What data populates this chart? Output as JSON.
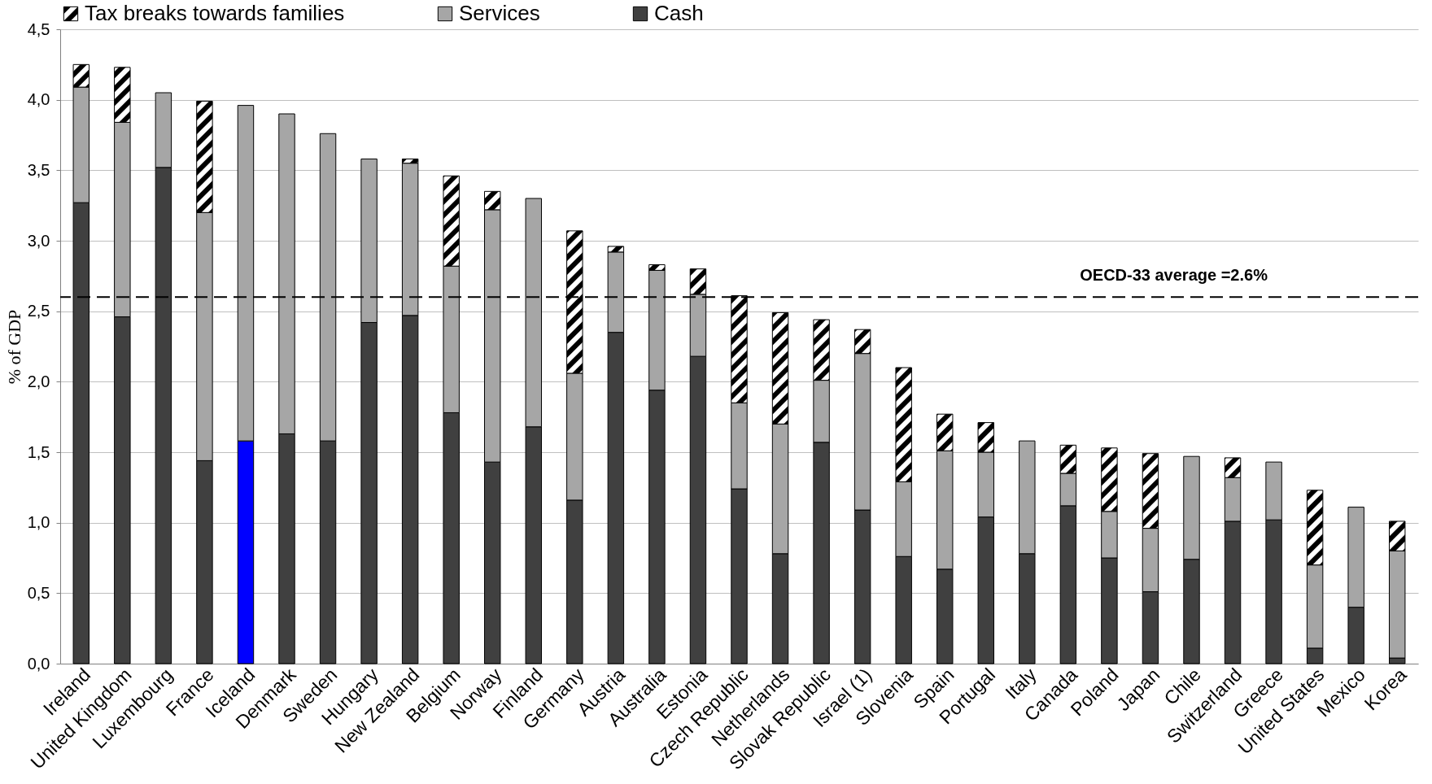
{
  "chart_data": {
    "type": "bar",
    "stacked": true,
    "ylabel": "% of GDP",
    "categories": [
      "Ireland",
      "United Kingdom",
      "Luxembourg",
      "France",
      "Iceland",
      "Denmark",
      "Sweden",
      "Hungary",
      "New Zealand",
      "Belgium",
      "Norway",
      "Finland",
      "Germany",
      "Austria",
      "Australia",
      "Estonia",
      "Czech Republic",
      "Netherlands",
      "Slovak Republic",
      "Israel (1)",
      "Slovenia",
      "Spain",
      "Portugal",
      "Italy",
      "Canada",
      "Poland",
      "Japan",
      "Chile",
      "Switzerland",
      "Greece",
      "United States",
      "Mexico",
      "Korea"
    ],
    "series": [
      {
        "name": "Cash",
        "color": "#404040",
        "colors": [
          "#404040",
          "#404040",
          "#404040",
          "#404040",
          "#0000ff",
          "#404040",
          "#404040",
          "#404040",
          "#404040",
          "#404040",
          "#404040",
          "#404040",
          "#404040",
          "#404040",
          "#404040",
          "#404040",
          "#404040",
          "#404040",
          "#404040",
          "#404040",
          "#404040",
          "#404040",
          "#404040",
          "#404040",
          "#404040",
          "#404040",
          "#404040",
          "#404040",
          "#404040",
          "#404040",
          "#404040",
          "#404040",
          "#404040"
        ],
        "values": [
          3.27,
          2.46,
          3.52,
          1.44,
          1.58,
          1.63,
          1.58,
          2.42,
          2.47,
          1.78,
          1.43,
          1.68,
          1.16,
          2.35,
          1.94,
          2.18,
          1.24,
          0.78,
          1.57,
          1.09,
          0.76,
          0.67,
          1.04,
          0.78,
          1.12,
          0.75,
          0.51,
          0.74,
          1.01,
          1.02,
          0.11,
          0.4,
          0.04
        ]
      },
      {
        "name": "Services",
        "color": "#a6a6a6",
        "values": [
          0.82,
          1.38,
          0.53,
          1.76,
          2.38,
          2.27,
          2.18,
          1.16,
          1.08,
          1.04,
          1.79,
          1.62,
          0.9,
          0.57,
          0.85,
          0.44,
          0.61,
          0.92,
          0.44,
          1.11,
          0.53,
          0.84,
          0.46,
          0.8,
          0.23,
          0.33,
          0.45,
          0.73,
          0.31,
          0.41,
          0.59,
          0.71,
          0.76
        ]
      },
      {
        "name": "Tax breaks towards families",
        "color": "#000000",
        "values": [
          0.16,
          0.39,
          null,
          0.79,
          null,
          null,
          null,
          null,
          0.03,
          0.64,
          0.13,
          null,
          1.01,
          0.04,
          0.04,
          0.18,
          0.76,
          0.79,
          0.43,
          0.17,
          0.81,
          0.26,
          0.21,
          null,
          0.2,
          0.45,
          0.53,
          null,
          0.14,
          null,
          0.53,
          null,
          0.21
        ]
      }
    ],
    "ylim": [
      0,
      4.5
    ],
    "yticks": [
      {
        "value": 0,
        "label": "0,0"
      },
      {
        "value": 0.5,
        "label": "0,5"
      },
      {
        "value": 1,
        "label": "1,0"
      },
      {
        "value": 1.5,
        "label": "1,5"
      },
      {
        "value": 2,
        "label": "2,0"
      },
      {
        "value": 2.5,
        "label": "2,5"
      },
      {
        "value": 3,
        "label": "3,0"
      },
      {
        "value": 3.5,
        "label": "3,5"
      },
      {
        "value": 4,
        "label": "4,0"
      },
      {
        "value": 4.5,
        "label": "4,5"
      }
    ],
    "grid": "y",
    "legend": "top",
    "ref_lines": [
      {
        "axis": "y",
        "value": 2.6,
        "label": "OECD-33 average =2.6%",
        "line_style": "dashed",
        "color": "#000000"
      }
    ]
  }
}
